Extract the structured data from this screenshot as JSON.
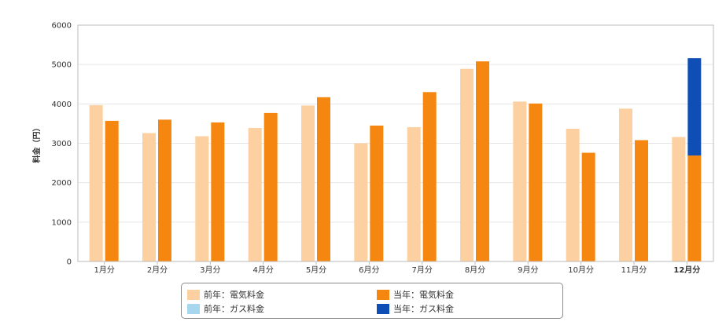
{
  "chart_data": {
    "type": "bar",
    "ylabel": "料金（円）",
    "ylim": [
      0,
      6000
    ],
    "yticks": [
      0,
      1000,
      2000,
      3000,
      4000,
      5000,
      6000
    ],
    "grid": true,
    "legend_placement": "bottom",
    "categories": [
      "1月分",
      "2月分",
      "3月分",
      "4月分",
      "5月分",
      "6月分",
      "7月分",
      "8月分",
      "9月分",
      "10月分",
      "11月分",
      "12月分"
    ],
    "highlight_category": "12月分",
    "series": [
      {
        "name": "前年：電気料金",
        "color": "#fdd0a2",
        "group": "previous",
        "values": [
          3970,
          3260,
          3180,
          3390,
          3960,
          3000,
          3410,
          4890,
          4060,
          3370,
          3880,
          3160
        ]
      },
      {
        "name": "前年：ガス料金",
        "color": "#a6d7ee",
        "group": "previous",
        "values": [
          0,
          0,
          0,
          0,
          0,
          0,
          0,
          0,
          0,
          0,
          0,
          0
        ]
      },
      {
        "name": "当年：電気料金",
        "color": "#f5860f",
        "group": "current",
        "values": [
          3570,
          3600,
          3530,
          3770,
          4170,
          3450,
          4300,
          5080,
          4010,
          2760,
          3080,
          2690
        ]
      },
      {
        "name": "当年：ガス料金",
        "color": "#0f4fb5",
        "group": "current",
        "values": [
          0,
          0,
          0,
          0,
          0,
          0,
          0,
          0,
          0,
          0,
          0,
          2470
        ]
      }
    ]
  }
}
